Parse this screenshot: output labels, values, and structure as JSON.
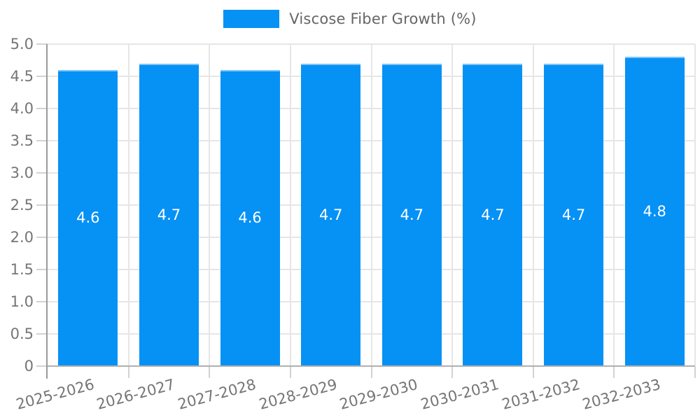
{
  "legend": {
    "label": "Viscose Fiber Growth (%)"
  },
  "chart_data": {
    "type": "bar",
    "title": "",
    "xlabel": "",
    "ylabel": "",
    "categories": [
      "2025-2026",
      "2026-2027",
      "2027-2028",
      "2028-2029",
      "2029-2030",
      "2030-2031",
      "2031-2032",
      "2032-2033"
    ],
    "series": [
      {
        "name": "Viscose Fiber Growth (%)",
        "values": [
          4.6,
          4.7,
          4.6,
          4.7,
          4.7,
          4.7,
          4.7,
          4.8
        ],
        "value_labels": [
          "4.6",
          "4.7",
          "4.6",
          "4.7",
          "4.7",
          "4.7",
          "4.7",
          "4.8"
        ]
      }
    ],
    "ylim": [
      0,
      5.0
    ],
    "ytick_step": 0.5,
    "ytick_labels": [
      "0",
      "0.5",
      "1.0",
      "1.5",
      "2.0",
      "2.5",
      "3.0",
      "3.5",
      "4.0",
      "4.5",
      "5.0"
    ],
    "grid": true,
    "legend_position": "top-center",
    "x_label_rotation_deg": -15,
    "colors": {
      "bar_fill": "#0691f5",
      "bar_top_edge": "rgba(170, 216, 250, 0.75)",
      "gridline": "#e6e6e6",
      "tick_mark": "#d2d2d2",
      "y_axis_line": "#9a9a9a",
      "x_axis_line": "#b0b0b0",
      "tick_text": "#757575",
      "legend_text": "#666666",
      "bar_label_text": "#ffffff"
    }
  }
}
